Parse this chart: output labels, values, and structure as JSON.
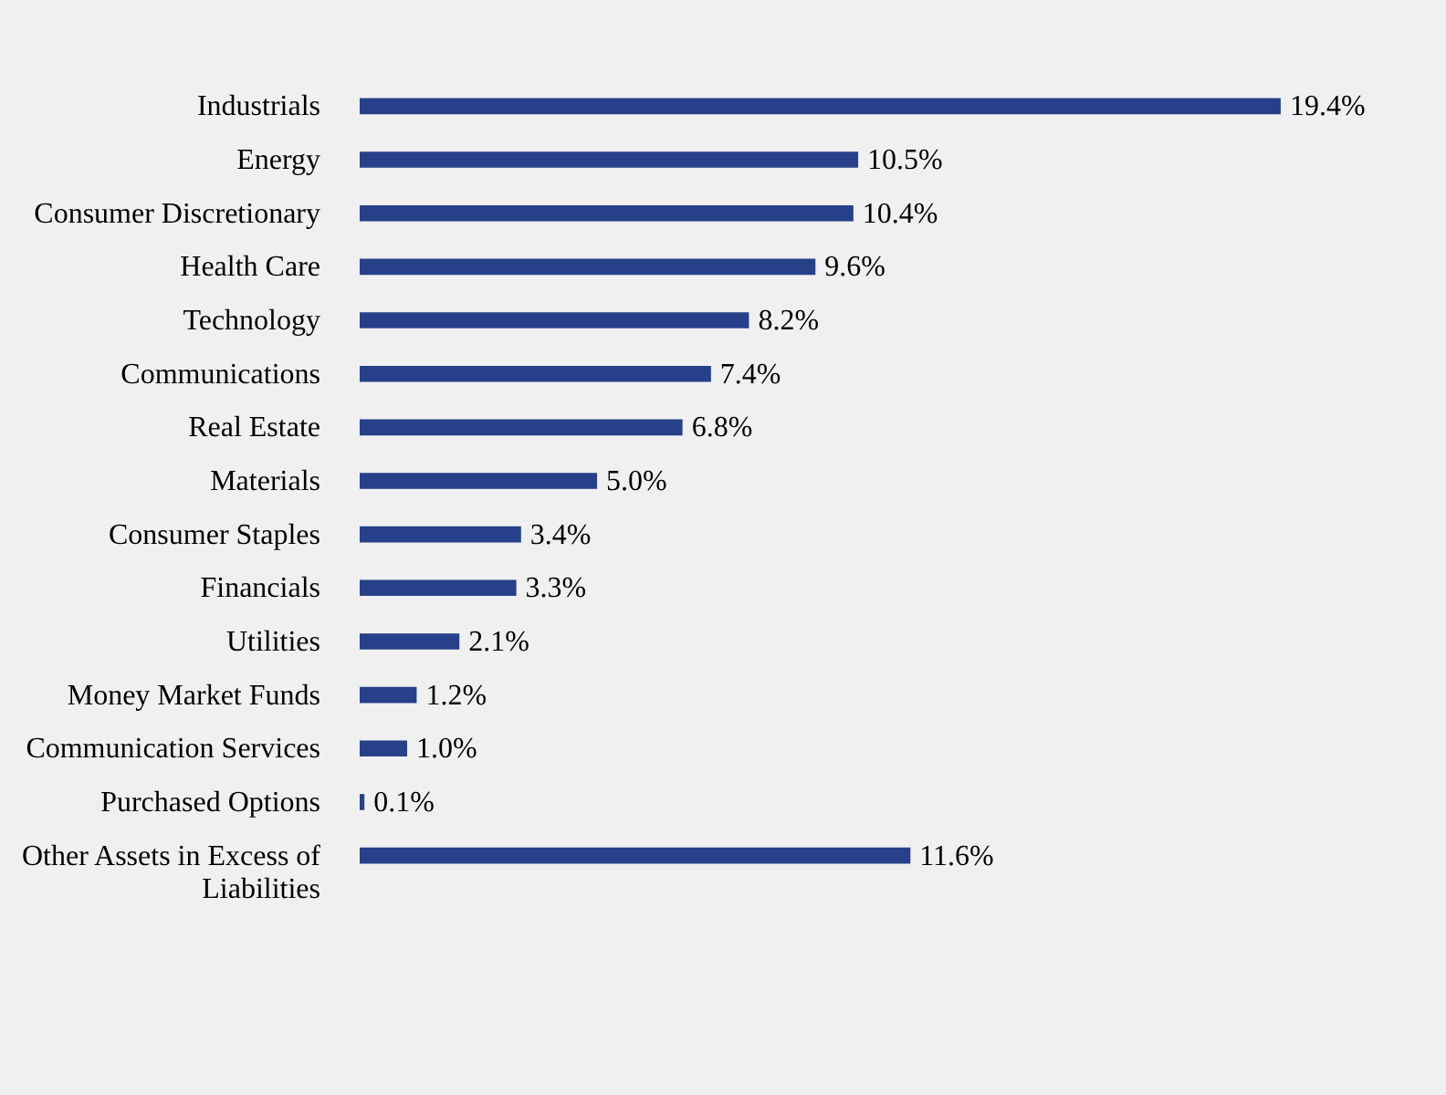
{
  "chart_data": {
    "type": "bar",
    "orientation": "horizontal",
    "color": "#26418a",
    "data_labels": false,
    "categories": [
      "Industrials",
      "Energy",
      "Consumer Discretionary",
      "Health Care",
      "Technology",
      "Communications",
      "Real Estate",
      "Materials",
      "Consumer Staples",
      "Financials",
      "Utilities",
      "Money Market Funds",
      "Communication Services",
      "Purchased Options",
      "Other Assets in Excess of Liabilities"
    ],
    "values": [
      19.4,
      10.5,
      10.4,
      9.6,
      8.2,
      7.4,
      6.8,
      5.0,
      3.4,
      3.3,
      2.1,
      1.2,
      1.0,
      0.1,
      11.6
    ],
    "value_labels": [
      "19.4%",
      "10.5%",
      "10.4%",
      "9.6%",
      "8.2%",
      "7.4%",
      "6.8%",
      "5.0%",
      "3.4%",
      "3.3%",
      "2.1%",
      "1.2%",
      "1.0%",
      "0.1%",
      "11.6%"
    ]
  }
}
